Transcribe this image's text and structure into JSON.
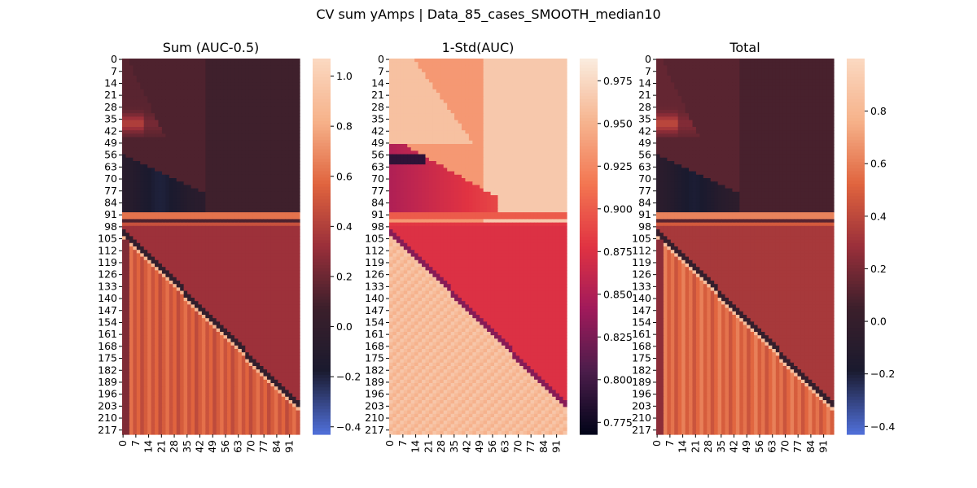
{
  "figure": {
    "title": "CV sum yAmps | Data_85_cases_SMOOTH_median10"
  },
  "chart_data": [
    {
      "type": "heatmap",
      "title": "Sum (AUC-0.5)",
      "xticks": [
        "0",
        "7",
        "14",
        "21",
        "28",
        "35",
        "42",
        "49",
        "56",
        "63",
        "70",
        "77",
        "84",
        "91"
      ],
      "yticks": [
        "0",
        "7",
        "14",
        "21",
        "28",
        "35",
        "42",
        "49",
        "56",
        "63",
        "70",
        "77",
        "84",
        "91",
        "98",
        "105",
        "112",
        "119",
        "126",
        "133",
        "140",
        "147",
        "154",
        "161",
        "168",
        "175",
        "182",
        "189",
        "196",
        "203",
        "210",
        "217"
      ],
      "x_range": [
        0,
        97
      ],
      "y_range": [
        0,
        220
      ],
      "colorbar": {
        "ticks": [
          "1.0",
          "0.8",
          "0.6",
          "0.4",
          "0.2",
          "0.0",
          "−0.2",
          "−0.4"
        ],
        "tick_values": [
          1.0,
          0.8,
          0.6,
          0.4,
          0.2,
          0.0,
          -0.2,
          -0.4
        ],
        "vmin": -0.43,
        "vmax": 1.07,
        "colormap": "icefire-like (blue-dark-orange)",
        "colors": [
          "#4f6ed6",
          "#1a1a2e",
          "#3b1f2b",
          "#9a2f3a",
          "#e0643e",
          "#f6b189",
          "#fbd8c0"
        ]
      }
    },
    {
      "type": "heatmap",
      "title": "1-Std(AUC)",
      "xticks": [
        "0",
        "7",
        "14",
        "21",
        "28",
        "35",
        "42",
        "49",
        "56",
        "63",
        "70",
        "77",
        "84",
        "91"
      ],
      "yticks": [
        "0",
        "7",
        "14",
        "21",
        "28",
        "35",
        "42",
        "49",
        "56",
        "63",
        "70",
        "77",
        "84",
        "91",
        "98",
        "105",
        "112",
        "119",
        "126",
        "133",
        "140",
        "147",
        "154",
        "161",
        "168",
        "175",
        "182",
        "189",
        "196",
        "203",
        "210",
        "217"
      ],
      "x_range": [
        0,
        97
      ],
      "y_range": [
        0,
        220
      ],
      "colorbar": {
        "ticks": [
          "0.975",
          "0.950",
          "0.925",
          "0.900",
          "0.875",
          "0.850",
          "0.825",
          "0.800",
          "0.775"
        ],
        "tick_values": [
          0.975,
          0.95,
          0.925,
          0.9,
          0.875,
          0.85,
          0.825,
          0.8,
          0.775
        ],
        "vmin": 0.768,
        "vmax": 0.988,
        "colormap": "rocket",
        "colors": [
          "#03051a",
          "#4c1d4b",
          "#a11a5b",
          "#e13342",
          "#f37651",
          "#f6b48f",
          "#faebdd"
        ]
      }
    },
    {
      "type": "heatmap",
      "title": "Total",
      "xticks": [
        "0",
        "7",
        "14",
        "21",
        "28",
        "35",
        "42",
        "49",
        "56",
        "63",
        "70",
        "77",
        "84",
        "91"
      ],
      "yticks": [
        "0",
        "7",
        "14",
        "21",
        "28",
        "35",
        "42",
        "49",
        "56",
        "63",
        "70",
        "77",
        "84",
        "91",
        "98",
        "105",
        "112",
        "119",
        "126",
        "133",
        "140",
        "147",
        "154",
        "161",
        "168",
        "175",
        "182",
        "189",
        "196",
        "203",
        "210",
        "217"
      ],
      "x_range": [
        0,
        97
      ],
      "y_range": [
        0,
        220
      ],
      "colorbar": {
        "ticks": [
          "0.8",
          "0.6",
          "0.4",
          "0.2",
          "0.0",
          "−0.2",
          "−0.4"
        ],
        "tick_values": [
          0.8,
          0.6,
          0.4,
          0.2,
          0.0,
          -0.2,
          -0.4
        ],
        "vmin": -0.43,
        "vmax": 1.0,
        "colormap": "icefire-like (blue-dark-orange)",
        "colors": [
          "#4f6ed6",
          "#1a1a2e",
          "#3b1f2b",
          "#9a2f3a",
          "#e0643e",
          "#f6b189",
          "#fbd8c0"
        ]
      }
    }
  ]
}
